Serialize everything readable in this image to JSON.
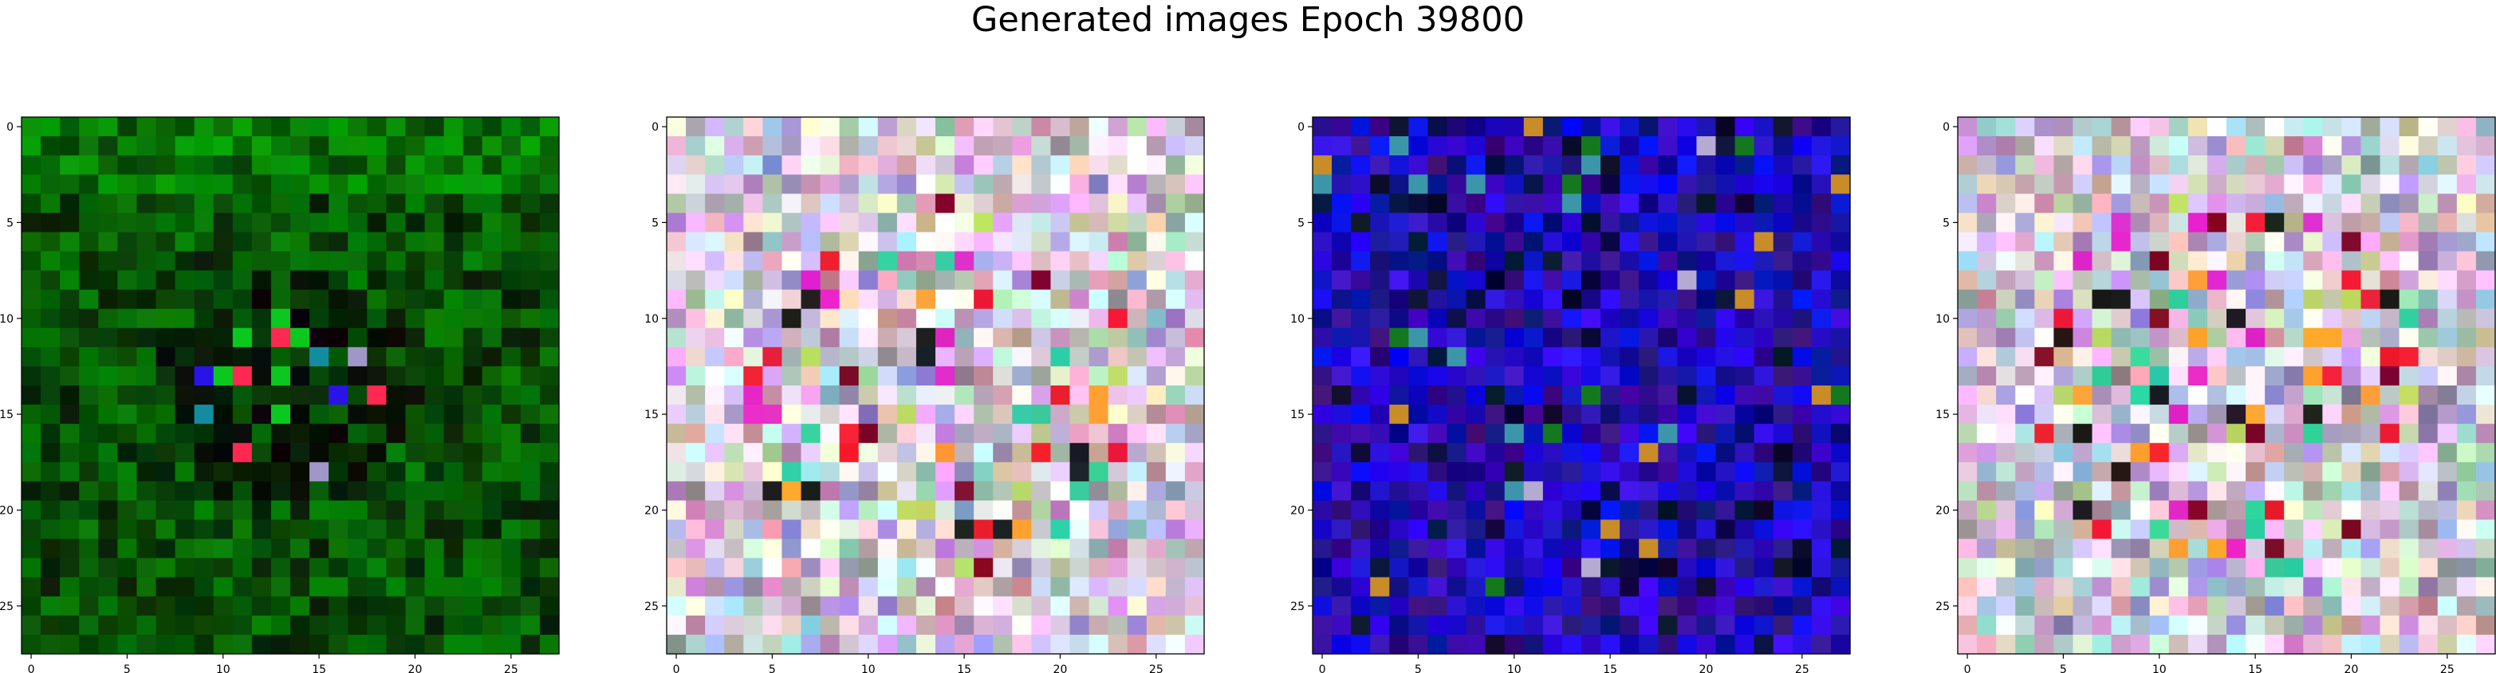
{
  "figure": {
    "title": "Generated images Epoch 39800"
  },
  "chart_data": [
    {
      "type": "heatmap",
      "name": "image-1",
      "tint": "green",
      "x_ticks": [
        0,
        5,
        10,
        15,
        20,
        25
      ],
      "y_ticks": [
        0,
        5,
        10,
        15,
        20,
        25
      ],
      "xlim": [
        -0.5,
        27.5
      ],
      "ylim": [
        27.5,
        -0.5
      ],
      "grid": false
    },
    {
      "type": "heatmap",
      "name": "image-2",
      "tint": "pastel",
      "x_ticks": [
        0,
        5,
        10,
        15,
        20,
        25
      ],
      "y_ticks": [
        0,
        5,
        10,
        15,
        20,
        25
      ],
      "xlim": [
        -0.5,
        27.5
      ],
      "ylim": [
        27.5,
        -0.5
      ],
      "grid": false
    },
    {
      "type": "heatmap",
      "name": "image-3",
      "tint": "blue",
      "x_ticks": [
        0,
        5,
        10,
        15,
        20,
        25
      ],
      "y_ticks": [
        0,
        5,
        10,
        15,
        20,
        25
      ],
      "xlim": [
        -0.5,
        27.5
      ],
      "ylim": [
        27.5,
        -0.5
      ],
      "grid": false
    },
    {
      "type": "heatmap",
      "name": "image-4",
      "tint": "pastel",
      "x_ticks": [
        0,
        5,
        10,
        15,
        20,
        25
      ],
      "y_ticks": [
        0,
        5,
        10,
        15,
        20,
        25
      ],
      "xlim": [
        -0.5,
        27.5
      ],
      "ylim": [
        27.5,
        -0.5
      ],
      "grid": false
    }
  ]
}
